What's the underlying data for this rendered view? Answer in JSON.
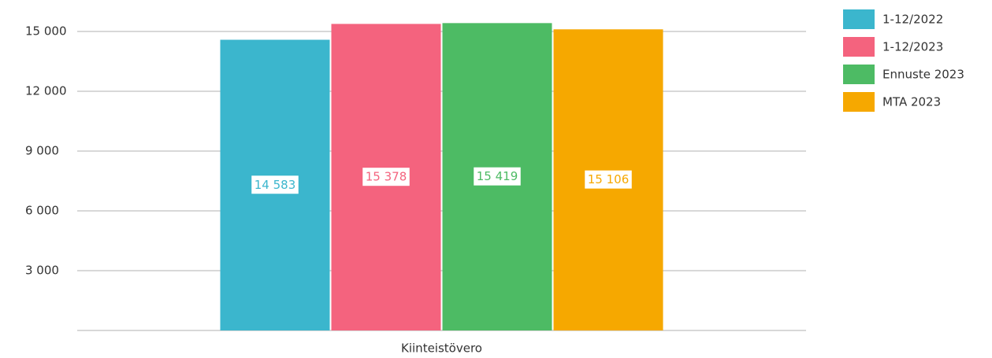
{
  "chart_data": {
    "type": "bar",
    "categories": [
      "Kiinteistövero"
    ],
    "series": [
      {
        "name": "1-12/2022",
        "color": "#3bb6cd",
        "values": [
          14583
        ],
        "value_labels": [
          "14 583"
        ]
      },
      {
        "name": "1-12/2023",
        "color": "#f4637e",
        "values": [
          15378
        ],
        "value_labels": [
          "15 378"
        ]
      },
      {
        "name": "Ennuste 2023",
        "color": "#4dbb64",
        "values": [
          15419
        ],
        "value_labels": [
          "15 419"
        ]
      },
      {
        "name": "MTA 2023",
        "color": "#f6a800",
        "values": [
          15106
        ],
        "value_labels": [
          "15 106"
        ]
      }
    ],
    "ylim": [
      0,
      15800
    ],
    "yticks": [
      {
        "value": 3000,
        "label": "3 000"
      },
      {
        "value": 6000,
        "label": "6 000"
      },
      {
        "value": 9000,
        "label": "9 000"
      },
      {
        "value": 12000,
        "label": "12 000"
      },
      {
        "value": 15000,
        "label": "15 000"
      }
    ],
    "grid": true,
    "legend": "right"
  }
}
